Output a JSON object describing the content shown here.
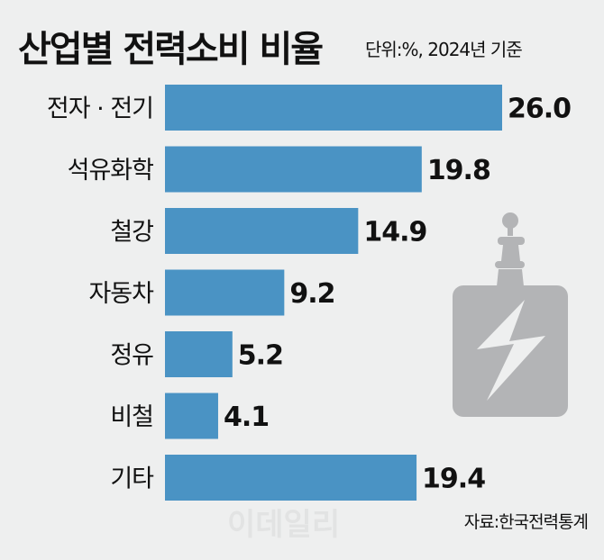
{
  "chart_data": {
    "type": "bar",
    "orientation": "horizontal",
    "title": "산업별 전력소비 비율",
    "subtitle": "단위:%, 2024년 기준",
    "categories": [
      "전자 · 전기",
      "석유화학",
      "철강",
      "자동차",
      "정유",
      "비철",
      "기타"
    ],
    "values": [
      26.0,
      19.8,
      14.9,
      9.2,
      5.2,
      4.1,
      19.4
    ],
    "value_labels": [
      "26.0",
      "19.8",
      "14.9",
      "9.2",
      "5.2",
      "4.1",
      "19.4"
    ],
    "xlim": [
      0,
      26
    ],
    "grid": false,
    "bar_color": "#4a93c4"
  },
  "source": "자료:한국전력통계",
  "watermark": "이데일리",
  "icon": "electric-battery-lightning-icon",
  "icon_color": "#b3b4b6"
}
